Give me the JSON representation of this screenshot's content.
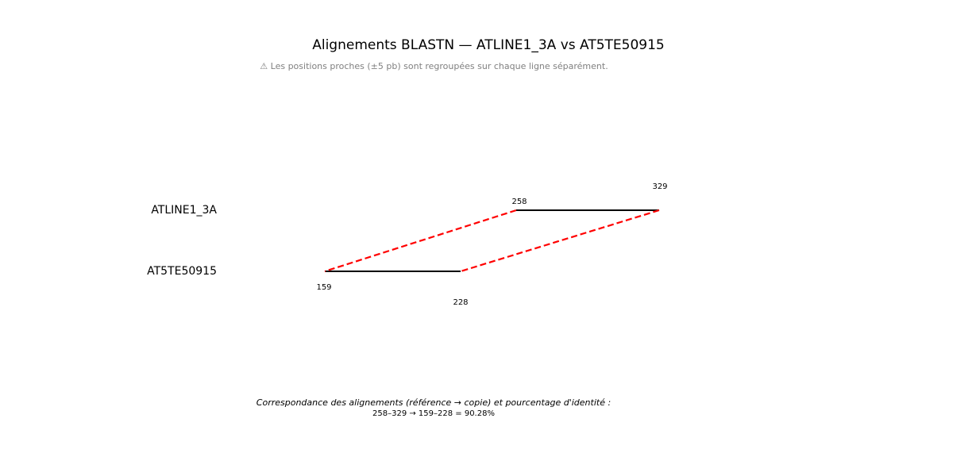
{
  "title": "Alignements BLASTN — ATLINE1_3A vs AT5TE50915",
  "subtitle": "⚠ Les positions proches (±5 pb) sont regroupées sur chaque ligne séparément.",
  "sequences": {
    "reference": {
      "name": "ATLINE1_3A",
      "start": 258,
      "end": 329
    },
    "copy": {
      "name": "AT5TE50915",
      "start": 159,
      "end": 228
    }
  },
  "alignment": {
    "reference_range": "258–329",
    "copy_range": "159–228",
    "identity_percent": 90.28
  },
  "colors": {
    "segment": "#000000",
    "connector": "#ff0000",
    "subtitle": "#808080"
  },
  "footer": {
    "title": "Correspondance des alignements (référence → copie) et pourcentage d'identité :",
    "lines": [
      "258–329 → 159–228 = 90.28%"
    ]
  }
}
